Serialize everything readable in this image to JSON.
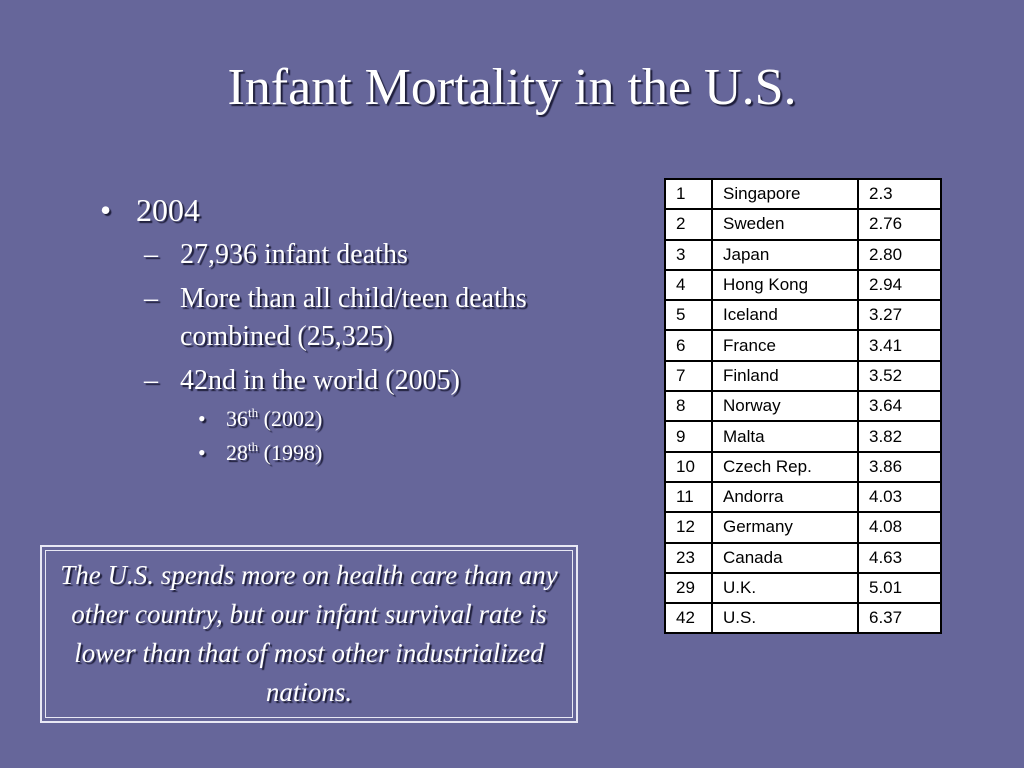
{
  "slide": {
    "title": "Infant Mortality in the U.S.",
    "bullets": {
      "year": "2004",
      "sub": [
        "27,936 infant deaths",
        "More than all child/teen deaths combined (25,325)",
        "42nd in the world (2005)"
      ],
      "rank_history": [
        {
          "rank": "36",
          "suffix": "th",
          "year": "(2002)"
        },
        {
          "rank": "28",
          "suffix": "th",
          "year": "(1998)"
        }
      ]
    },
    "callout": "The U.S. spends more on health care than any other country, but our infant survival rate is lower than that of most other industrialized nations."
  },
  "ranking_table": [
    [
      "1",
      "Singapore",
      "2.3"
    ],
    [
      "2",
      "Sweden",
      "2.76"
    ],
    [
      "3",
      "Japan",
      "2.80"
    ],
    [
      "4",
      "Hong Kong",
      "2.94"
    ],
    [
      "5",
      "Iceland",
      "3.27"
    ],
    [
      "6",
      "France",
      "3.41"
    ],
    [
      "7",
      "Finland",
      "3.52"
    ],
    [
      "8",
      "Norway",
      "3.64"
    ],
    [
      "9",
      "Malta",
      "3.82"
    ],
    [
      "10",
      "Czech Rep.",
      "3.86"
    ],
    [
      "11",
      "Andorra",
      "4.03"
    ],
    [
      "12",
      "Germany",
      "4.08"
    ],
    [
      "23",
      "Canada",
      "4.63"
    ],
    [
      "29",
      "U.K.",
      "5.01"
    ],
    [
      "42",
      "U.S.",
      "6.37"
    ]
  ],
  "colors": {
    "background": "#66669a",
    "text": "#ffffff",
    "shadow": "#1e1e3a"
  }
}
